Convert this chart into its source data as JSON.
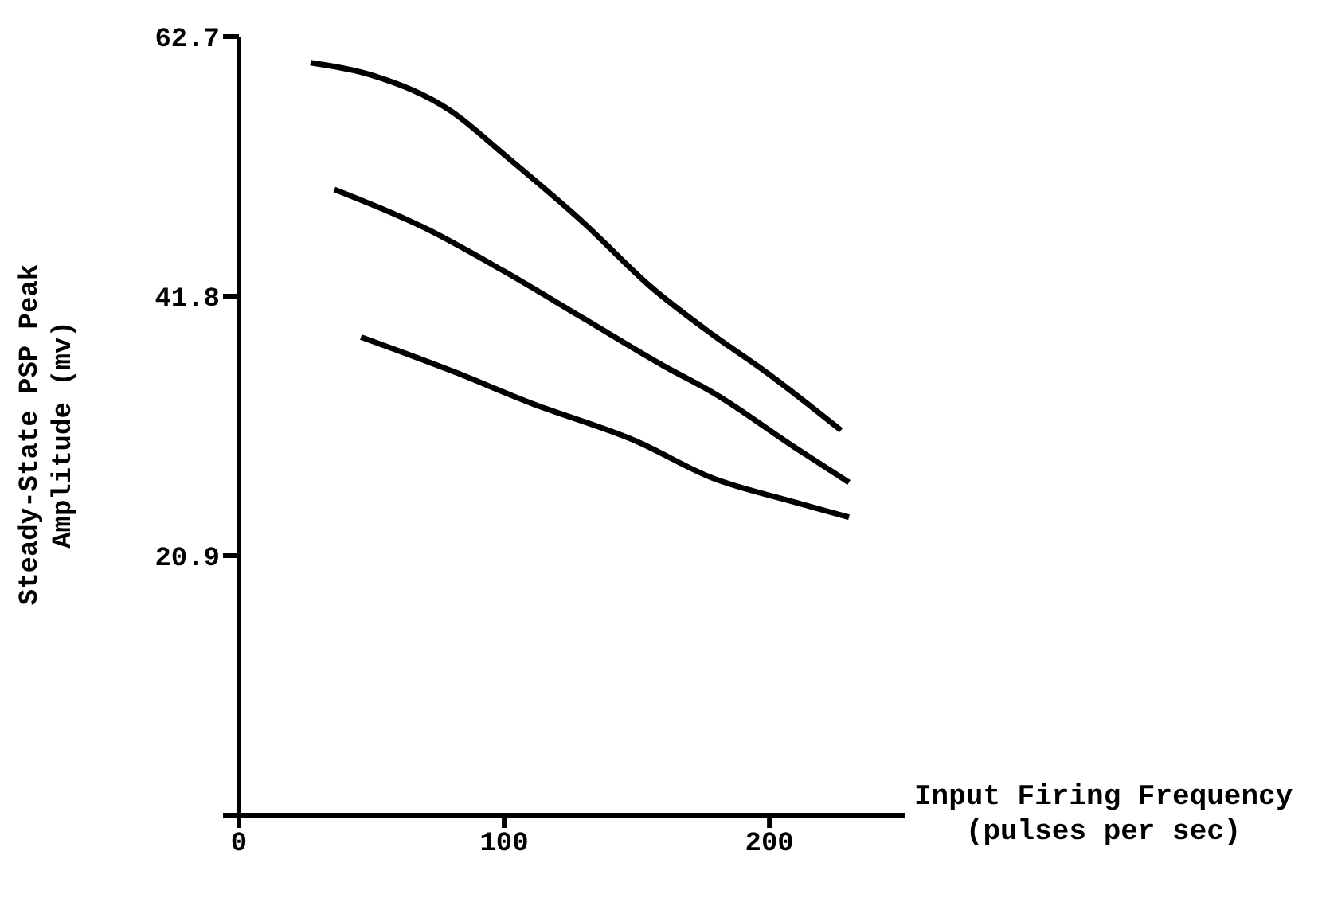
{
  "chart_data": {
    "type": "line",
    "xlabel": "Input Firing Frequency\n(pulses per sec)",
    "ylabel": "Steady-State PSP Peak\nAmplitude (mv)",
    "xlim": [
      0,
      251
    ],
    "xticks": [
      0,
      100,
      200
    ],
    "ylim": [
      0,
      62.7
    ],
    "yticks": [
      {
        "value": 0,
        "label": null
      },
      20.9,
      41.8,
      62.7
    ],
    "grid": false,
    "marker": "none",
    "line_style": "solid",
    "series": [
      {
        "color": "#000000",
        "x": [
          27,
          50,
          80,
          100,
          130,
          155,
          178.6,
          198,
          227
        ],
        "values": [
          60.6,
          59.6,
          56.7,
          53.2,
          47.7,
          42.6,
          38.7,
          35.8,
          31.0
        ]
      },
      {
        "color": "#000000",
        "x": [
          36,
          70,
          100,
          130,
          160,
          179,
          209,
          230
        ],
        "values": [
          50.4,
          47.3,
          43.8,
          40.0,
          36.2,
          34.0,
          29.7,
          26.8
        ]
      },
      {
        "color": "#000000",
        "x": [
          46,
          80,
          110,
          150,
          178,
          208,
          230
        ],
        "values": [
          38.5,
          35.8,
          33.2,
          30.1,
          27.2,
          25.3,
          24.0
        ]
      }
    ]
  }
}
